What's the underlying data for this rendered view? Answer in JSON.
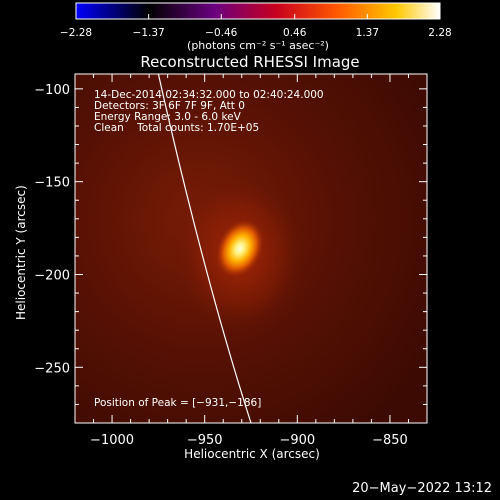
{
  "chart_data": {
    "type": "heatmap",
    "title": "Reconstructed RHESSI Image",
    "xlabel": "Heliocentric X (arcsec)",
    "ylabel": "Heliocentric Y (arcsec)",
    "xlim": [
      -1020,
      -830
    ],
    "ylim": [
      -280,
      -92
    ],
    "xticks": [
      -1000,
      -950,
      -900,
      -850
    ],
    "xtick_labels": [
      "−1000",
      "−950",
      "−900",
      "−850"
    ],
    "yticks": [
      -100,
      -150,
      -200,
      -250
    ],
    "ytick_labels": [
      "−100",
      "−150",
      "−200",
      "−250"
    ],
    "colorbar": {
      "min": -2.28,
      "max": 2.28,
      "ticks": [
        -2.28,
        -1.37,
        -0.46,
        0.46,
        1.37,
        2.28
      ],
      "tick_labels": [
        "−2.28",
        "−1.37",
        "−0.46",
        "0.46",
        "1.37",
        "2.28"
      ],
      "units_label": "(photons cm⁻² s⁻¹ asec⁻²)",
      "colors": [
        "#0000ff",
        "#000000",
        "#6a0080",
        "#c8001e",
        "#ff5a00",
        "#ffc800",
        "#ffffff"
      ]
    },
    "source_peak": {
      "x": -931,
      "y": -186
    },
    "info_lines": [
      "14-Dec-2014 02:34:32.000 to 02:40:24.000",
      "Detectors: 3F 6F 7F 9F, Att 0",
      "Energy Range: 3.0 - 6.0 keV",
      "Clean    Total counts: 1.70E+05"
    ],
    "peak_label": "Position of Peak = [−931,−186]",
    "limb_line": "white",
    "grid": false
  },
  "footer": {
    "timestamp": "20−May−2022 13:12"
  }
}
